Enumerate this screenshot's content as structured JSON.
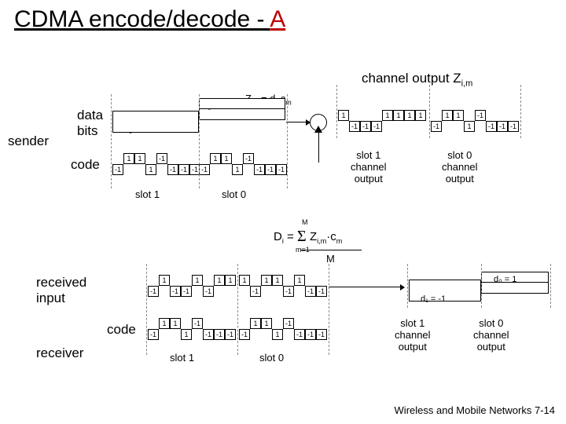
{
  "title": {
    "black": "CDMA encode/decode - ",
    "red": "A"
  },
  "labels": {
    "sender": "sender",
    "receiver": "receiver",
    "data_bits": "data\nbits",
    "code": "code",
    "received_input": "received\ninput",
    "channel_output": "channel output Z",
    "channel_output_sub": "i,m",
    "d1": "d₁ = -1",
    "d0": "d₀ = 1",
    "Zim_eq": "Z",
    "Zim_sub": "i,m",
    "Zim_rest": "= d",
    "Zim_sub2": "i",
    "Zim_dot": "·c",
    "Zim_sub3": "m",
    "slot1": "slot 1",
    "slot0": "slot 0",
    "slot1_ch": "slot 1\nchannel\noutput",
    "slot0_ch": "slot 0\nchannel\noutput",
    "Di_eq": "D",
    "Di_sub": "i",
    "Di_eq2": " = ",
    "sum_top": "M",
    "sum_bot": "m=1",
    "Di_rest": "Z",
    "Di_sub2": "i,m",
    "Di_dot": "·c",
    "Di_sub3": "m",
    "M": "M",
    "footer": "Wireless and Mobile Networks  7-14"
  },
  "chips": {
    "code": [
      "-1",
      "1",
      "1",
      "1",
      "-1",
      "-1",
      "-1",
      "-1"
    ],
    "code_up": [
      0,
      1,
      1,
      0,
      1,
      0,
      0,
      0
    ],
    "out1": [
      "1",
      "-1",
      "-1",
      "-1",
      "1",
      "1",
      "1",
      "1"
    ],
    "out1_up": [
      1,
      0,
      0,
      0,
      1,
      1,
      1,
      1
    ],
    "out0": [
      "-1",
      "1",
      "1",
      "1",
      "-1",
      "-1",
      "-1",
      "-1"
    ],
    "out0_up": [
      0,
      1,
      1,
      0,
      1,
      0,
      0,
      0
    ],
    "recv1": [
      "-1",
      "1",
      "-1",
      "-1",
      "1",
      "-1",
      "1",
      "1"
    ],
    "recv1_up": [
      0,
      1,
      0,
      0,
      1,
      0,
      1,
      1
    ],
    "recv0": [
      "1",
      "-1",
      "1",
      "1",
      "-1",
      "1",
      "-1",
      "-1"
    ],
    "recv0_up": [
      1,
      0,
      1,
      1,
      0,
      1,
      0,
      0
    ]
  },
  "colors": {
    "red": "#c00000",
    "text": "#000000",
    "dash": "#888888"
  }
}
